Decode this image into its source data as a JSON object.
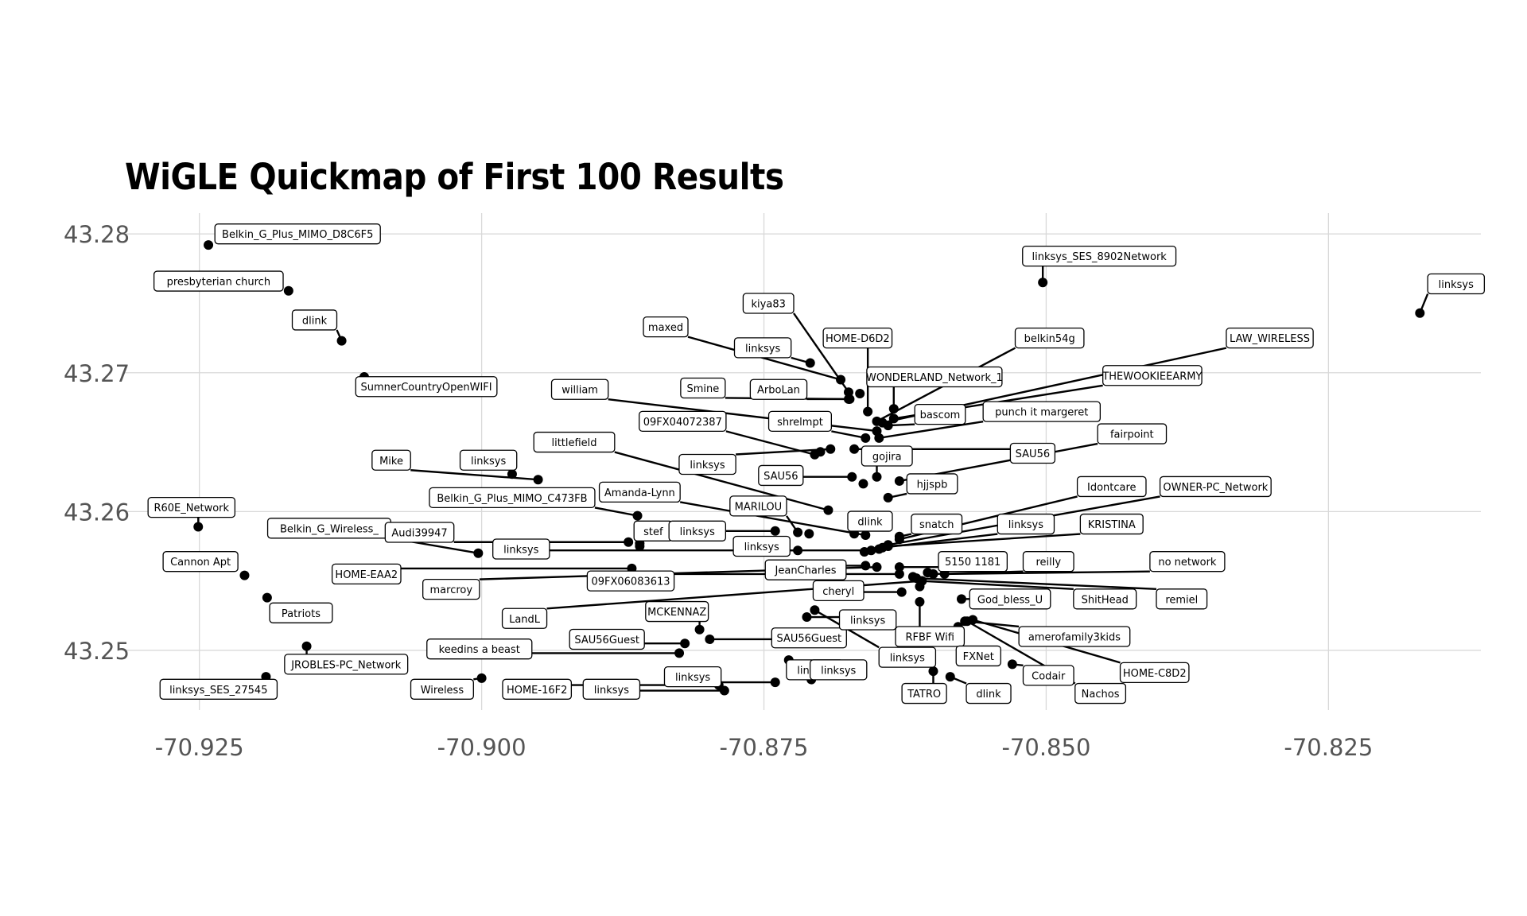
{
  "chart_data": {
    "type": "scatter",
    "title": "WiGLE Quickmap of First 100 Results",
    "xlabel": "",
    "ylabel": "",
    "xlim": [
      -70.9316,
      -70.8115
    ],
    "ylim": [
      43.2457,
      43.2815
    ],
    "x_ticks": [
      -70.925,
      -70.9,
      -70.875,
      -70.85,
      -70.825
    ],
    "x_tick_labels": [
      "-70.925",
      "-70.900",
      "-70.875",
      "-70.850",
      "-70.825"
    ],
    "y_ticks": [
      43.25,
      43.26,
      43.27,
      43.28
    ],
    "y_tick_labels": [
      "43.25",
      "43.26",
      "43.27",
      "43.28"
    ],
    "grid": true,
    "points": [
      {
        "name": "Belkin_G_Plus_MIMO_D8C6F5",
        "lon": -70.9242,
        "lat": 43.2792,
        "label_lon": -70.9163,
        "label_lat": 43.28
      },
      {
        "name": "presbyterian church",
        "lon": -70.9171,
        "lat": 43.2759,
        "label_lon": -70.9233,
        "label_lat": 43.2766
      },
      {
        "name": "dlink",
        "lon": -70.9124,
        "lat": 43.2723,
        "label_lon": -70.9148,
        "label_lat": 43.2738
      },
      {
        "name": "SumnerCountryOpenWIFI",
        "lon": -70.9104,
        "lat": 43.2697,
        "label_lon": -70.9049,
        "label_lat": 43.269
      },
      {
        "name": "R60E_Network",
        "lon": -70.9251,
        "lat": 43.2589,
        "label_lon": -70.9257,
        "label_lat": 43.2603
      },
      {
        "name": "Belkin_G_Wireless_",
        "lon": -70.9003,
        "lat": 43.257,
        "label_lon": -70.9135,
        "label_lat": 43.2588
      },
      {
        "name": "Cannon Apt",
        "lon": -70.921,
        "lat": 43.2554,
        "label_lon": -70.9249,
        "label_lat": 43.2564
      },
      {
        "name": "Patriots",
        "lon": -70.919,
        "lat": 43.2538,
        "label_lon": -70.916,
        "label_lat": 43.2527
      },
      {
        "name": "JROBLES-PC_Network",
        "lon": -70.9155,
        "lat": 43.2503,
        "label_lon": -70.912,
        "label_lat": 43.249
      },
      {
        "name": "linksys_SES_27545",
        "lon": -70.9191,
        "lat": 43.2481,
        "label_lon": -70.9233,
        "label_lat": 43.2472
      },
      {
        "name": "Mike",
        "lon": -70.895,
        "lat": 43.2623,
        "label_lon": -70.908,
        "label_lat": 43.2637
      },
      {
        "name": "linksys",
        "lon": -70.8973,
        "lat": 43.2627,
        "label_lon": -70.8994,
        "label_lat": 43.2637
      },
      {
        "name": "Belkin_G_Plus_MIMO_C473FB",
        "lon": -70.8862,
        "lat": 43.2597,
        "label_lon": -70.8973,
        "label_lat": 43.261
      },
      {
        "name": "Audi39947",
        "lon": -70.887,
        "lat": 43.2578,
        "label_lon": -70.9055,
        "label_lat": 43.2585
      },
      {
        "name": "linksys",
        "lon": -70.872,
        "lat": 43.2572,
        "label_lon": -70.8965,
        "label_lat": 43.2573
      },
      {
        "name": "HOME-EAA2",
        "lon": -70.8867,
        "lat": 43.2559,
        "label_lon": -70.9102,
        "label_lat": 43.2555
      },
      {
        "name": "marcroy",
        "lon": -70.865,
        "lat": 43.256,
        "label_lon": -70.9027,
        "label_lat": 43.2544
      },
      {
        "name": "09FX06083613",
        "lon": -70.863,
        "lat": 43.2555,
        "label_lon": -70.8868,
        "label_lat": 43.255
      },
      {
        "name": "LandL",
        "lon": -70.861,
        "lat": 43.255,
        "label_lon": -70.8962,
        "label_lat": 43.2523
      },
      {
        "name": "MCKENNAZ",
        "lon": -70.8807,
        "lat": 43.2515,
        "label_lon": -70.8827,
        "label_lat": 43.2528
      },
      {
        "name": "SAU56Guest",
        "lon": -70.882,
        "lat": 43.2505,
        "label_lon": -70.8889,
        "label_lat": 43.2508
      },
      {
        "name": "keedins a beast",
        "lon": -70.8825,
        "lat": 43.2498,
        "label_lon": -70.9002,
        "label_lat": 43.2501
      },
      {
        "name": "Wireless",
        "lon": -70.9,
        "lat": 43.248,
        "label_lon": -70.9035,
        "label_lat": 43.2472
      },
      {
        "name": "HOME-16F2",
        "lon": -70.879,
        "lat": 43.2475,
        "label_lon": -70.8951,
        "label_lat": 43.2472
      },
      {
        "name": "linksys",
        "lon": -70.8785,
        "lat": 43.2471,
        "label_lon": -70.8885,
        "label_lat": 43.2472
      },
      {
        "name": "linksys",
        "lon": -70.874,
        "lat": 43.2477,
        "label_lon": -70.8813,
        "label_lat": 43.2481
      },
      {
        "name": "SAU56Guest",
        "lon": -70.8798,
        "lat": 43.2508,
        "label_lon": -70.871,
        "label_lat": 43.2509
      },
      {
        "name": "linksys",
        "lon": -70.8728,
        "lat": 43.2493,
        "label_lon": -70.8705,
        "label_lat": 43.2486
      },
      {
        "name": "linksys",
        "lon": -70.8708,
        "lat": 43.2479,
        "label_lon": -70.8684,
        "label_lat": 43.2486
      },
      {
        "name": "linksys",
        "lon": -70.8712,
        "lat": 43.2524,
        "label_lon": -70.8658,
        "label_lat": 43.2522
      },
      {
        "name": "linksys",
        "lon": -70.8705,
        "lat": 43.2529,
        "label_lon": -70.8623,
        "label_lat": 43.2495
      },
      {
        "name": "TATRO",
        "lon": -70.86,
        "lat": 43.2485,
        "label_lon": -70.8608,
        "label_lat": 43.2469
      },
      {
        "name": "dlink",
        "lon": -70.8585,
        "lat": 43.2481,
        "label_lon": -70.8551,
        "label_lat": 43.2469
      },
      {
        "name": "RFBF Wifi",
        "lon": -70.8612,
        "lat": 43.2535,
        "label_lon": -70.8603,
        "label_lat": 43.251
      },
      {
        "name": "FXNet",
        "lon": -70.8578,
        "lat": 43.2517,
        "label_lon": -70.856,
        "label_lat": 43.2496
      },
      {
        "name": "Codair",
        "lon": -70.853,
        "lat": 43.249,
        "label_lon": -70.8498,
        "label_lat": 43.2482
      },
      {
        "name": "Nachos",
        "lon": -70.857,
        "lat": 43.2521,
        "label_lon": -70.8452,
        "label_lat": 43.2469
      },
      {
        "name": "HOME-C8D2",
        "lon": -70.8565,
        "lat": 43.2522,
        "label_lon": -70.8404,
        "label_lat": 43.2484
      },
      {
        "name": "amerofamily3kids",
        "lon": -70.8572,
        "lat": 43.2521,
        "label_lon": -70.8475,
        "label_lat": 43.251
      },
      {
        "name": "God_bless_U",
        "lon": -70.8575,
        "lat": 43.2537,
        "label_lon": -70.8532,
        "label_lat": 43.2537
      },
      {
        "name": "ShitHead",
        "lon": -70.861,
        "lat": 43.255,
        "label_lon": -70.8448,
        "label_lat": 43.2537
      },
      {
        "name": "remiel",
        "lon": -70.8615,
        "lat": 43.2552,
        "label_lon": -70.838,
        "label_lat": 43.2537
      },
      {
        "name": "reilly",
        "lon": -70.86,
        "lat": 43.2555,
        "label_lon": -70.8498,
        "label_lat": 43.2564
      },
      {
        "name": "no network",
        "lon": -70.859,
        "lat": 43.2555,
        "label_lon": -70.8375,
        "label_lat": 43.2564
      },
      {
        "name": "5150 1181",
        "lon": -70.863,
        "lat": 43.256,
        "label_lon": -70.8565,
        "label_lat": 43.2564
      },
      {
        "name": "JeanCharles",
        "lon": -70.866,
        "lat": 43.2561,
        "label_lon": -70.8713,
        "label_lat": 43.2558
      },
      {
        "name": "cheryl",
        "lon": -70.8628,
        "lat": 43.2542,
        "label_lon": -70.8684,
        "label_lat": 43.2543
      },
      {
        "name": "linksys",
        "lon": -70.8655,
        "lat": 43.2572,
        "label_lon": -70.8752,
        "label_lat": 43.2575
      },
      {
        "name": "KRISTINA",
        "lon": -70.864,
        "lat": 43.2575,
        "label_lon": -70.8442,
        "label_lat": 43.2591
      },
      {
        "name": "linksys",
        "lon": -70.8645,
        "lat": 43.2574,
        "label_lon": -70.8518,
        "label_lat": 43.2591
      },
      {
        "name": "snatch",
        "lon": -70.863,
        "lat": 43.2582,
        "label_lon": -70.8597,
        "label_lat": 43.2591
      },
      {
        "name": "OWNER-PC_Network",
        "lon": -70.864,
        "lat": 43.2576,
        "label_lon": -70.835,
        "label_lat": 43.2618
      },
      {
        "name": "Idontcare",
        "lon": -70.863,
        "lat": 43.258,
        "label_lon": -70.8442,
        "label_lat": 43.2618
      },
      {
        "name": "dlink",
        "lon": -70.867,
        "lat": 43.2584,
        "label_lon": -70.8656,
        "label_lat": 43.2593
      },
      {
        "name": "MARILOU",
        "lon": -70.872,
        "lat": 43.2585,
        "label_lon": -70.8755,
        "label_lat": 43.2604
      },
      {
        "name": "stef",
        "lon": -70.886,
        "lat": 43.2577,
        "label_lon": -70.8848,
        "label_lat": 43.2586
      },
      {
        "name": "linksys",
        "lon": -70.874,
        "lat": 43.2586,
        "label_lon": -70.8809,
        "label_lat": 43.2586
      },
      {
        "name": "Amanda-Lynn",
        "lon": -70.866,
        "lat": 43.2583,
        "label_lon": -70.886,
        "label_lat": 43.2614
      },
      {
        "name": "littlefield",
        "lon": -70.8693,
        "lat": 43.2601,
        "label_lon": -70.8918,
        "label_lat": 43.265
      },
      {
        "name": "linksys",
        "lon": -70.8691,
        "lat": 43.2645,
        "label_lon": -70.88,
        "label_lat": 43.2634
      },
      {
        "name": "SAU56",
        "lon": -70.8672,
        "lat": 43.2625,
        "label_lon": -70.8735,
        "label_lat": 43.2626
      },
      {
        "name": "gojira",
        "lon": -70.865,
        "lat": 43.2625,
        "label_lon": -70.8641,
        "label_lat": 43.264
      },
      {
        "name": "hjjspb",
        "lon": -70.864,
        "lat": 43.261,
        "label_lon": -70.8601,
        "label_lat": 43.262
      },
      {
        "name": "SAU56",
        "lon": -70.867,
        "lat": 43.2645,
        "label_lon": -70.8512,
        "label_lat": 43.2642
      },
      {
        "name": "fairpoint",
        "lon": -70.863,
        "lat": 43.2622,
        "label_lon": -70.8424,
        "label_lat": 43.2656
      },
      {
        "name": "shrelmpt",
        "lon": -70.866,
        "lat": 43.2653,
        "label_lon": -70.8718,
        "label_lat": 43.2665
      },
      {
        "name": "09FX04072387",
        "lon": -70.8705,
        "lat": 43.2641,
        "label_lon": -70.8822,
        "label_lat": 43.2665
      },
      {
        "name": "william",
        "lon": -70.865,
        "lat": 43.2658,
        "label_lon": -70.8913,
        "label_lat": 43.2688
      },
      {
        "name": "Smine",
        "lon": -70.8675,
        "lat": 43.2681,
        "label_lon": -70.8804,
        "label_lat": 43.2689
      },
      {
        "name": "ArboLan",
        "lon": -70.8674,
        "lat": 43.2681,
        "label_lon": -70.8737,
        "label_lat": 43.2688
      },
      {
        "name": "bascom",
        "lon": -70.864,
        "lat": 43.2662,
        "label_lon": -70.8594,
        "label_lat": 43.267
      },
      {
        "name": "punch it margeret",
        "lon": -70.8648,
        "lat": 43.2653,
        "label_lon": -70.8504,
        "label_lat": 43.2672
      },
      {
        "name": "WONDERLAND_Network_1",
        "lon": -70.8635,
        "lat": 43.2674,
        "label_lon": -70.8599,
        "label_lat": 43.2697
      },
      {
        "name": "THEWOOKIEEARMY",
        "lon": -70.8635,
        "lat": 43.2667,
        "label_lon": -70.8406,
        "label_lat": 43.2698
      },
      {
        "name": "LAW_WIRELESS",
        "lon": -70.8645,
        "lat": 43.2664,
        "label_lon": -70.8302,
        "label_lat": 43.2725
      },
      {
        "name": "belkin54g",
        "lon": -70.865,
        "lat": 43.2665,
        "label_lon": -70.8497,
        "label_lat": 43.2725
      },
      {
        "name": "HOME-D6D2",
        "lon": -70.8658,
        "lat": 43.2672,
        "label_lon": -70.8667,
        "label_lat": 43.2725
      },
      {
        "name": "linksys",
        "lon": -70.8709,
        "lat": 43.2707,
        "label_lon": -70.8751,
        "label_lat": 43.2718
      },
      {
        "name": "kiya83",
        "lon": -70.8675,
        "lat": 43.2686,
        "label_lon": -70.8746,
        "label_lat": 43.275
      },
      {
        "name": "maxed",
        "lon": -70.8682,
        "lat": 43.2695,
        "label_lon": -70.8837,
        "label_lat": 43.2733
      },
      {
        "name": "linksys_SES_8902Network",
        "lon": -70.8503,
        "lat": 43.2765,
        "label_lon": -70.8453,
        "label_lat": 43.2784
      },
      {
        "name": "linksys",
        "lon": -70.8169,
        "lat": 43.2743,
        "label_lon": -70.8137,
        "label_lat": 43.2764
      }
    ],
    "extra_points": [
      {
        "lon": -70.886,
        "lat": 43.2575
      },
      {
        "lon": -70.871,
        "lat": 43.2584
      },
      {
        "lon": -70.8661,
        "lat": 43.2571
      },
      {
        "lon": -70.8648,
        "lat": 43.2573
      },
      {
        "lon": -70.8662,
        "lat": 43.262
      },
      {
        "lon": -70.87,
        "lat": 43.2643
      },
      {
        "lon": -70.8665,
        "lat": 43.2685
      },
      {
        "lon": -70.8618,
        "lat": 43.2553
      },
      {
        "lon": -70.8605,
        "lat": 43.2556
      },
      {
        "lon": -70.8612,
        "lat": 43.2546
      }
    ]
  }
}
